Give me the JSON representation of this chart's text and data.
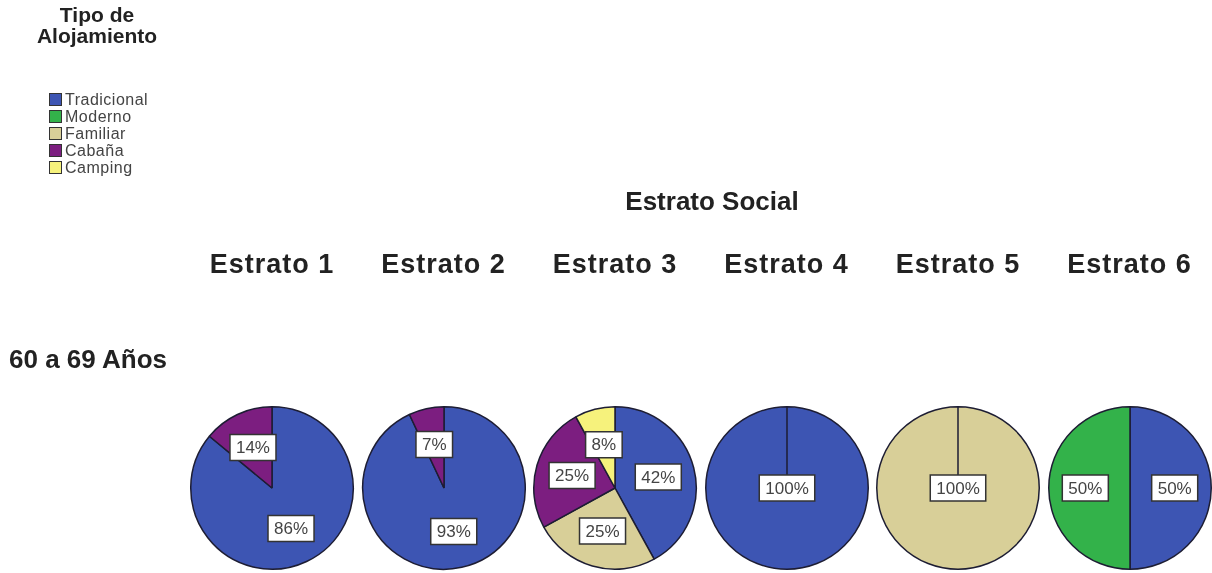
{
  "chart_data": [
    {
      "type": "other",
      "title": "Estrato Social",
      "annotations": [
        "60 a 69 Años"
      ]
    },
    {
      "type": "pie",
      "title": "Estrato 1",
      "categories": [
        "Tradicional",
        "Moderno",
        "Familiar",
        "Cabaña",
        "Camping"
      ],
      "values": [
        86,
        0,
        0,
        14,
        0
      ],
      "colors": [
        "#3d55b3",
        "#33b24a",
        "#d8cf98",
        "#7c1e80",
        "#f6f27c"
      ],
      "value_labels": [
        "86%",
        null,
        null,
        "14%",
        null
      ],
      "legend": "top left",
      "legend_title": "Tipo de Alojamiento"
    },
    {
      "type": "pie",
      "title": "Estrato 2",
      "categories": [
        null,
        null,
        null,
        null,
        null
      ],
      "values": [
        93,
        0,
        0,
        7,
        0
      ],
      "colors": [
        "#3d55b3",
        "#33b24a",
        "#d8cf98",
        "#7c1e80",
        "#f6f27c"
      ],
      "value_labels": [
        "93%",
        null,
        null,
        "7%",
        null
      ]
    },
    {
      "type": "pie",
      "title": "Estrato 3",
      "categories": [
        null,
        null,
        null,
        null,
        null
      ],
      "values": [
        42,
        0,
        25,
        25,
        8
      ],
      "colors": [
        "#3d55b3",
        "#33b24a",
        "#d8cf98",
        "#7c1e80",
        "#f6f27c"
      ],
      "value_labels": [
        "42%",
        null,
        "25%",
        "25%",
        "8%"
      ]
    },
    {
      "type": "pie",
      "title": "Estrato 4",
      "categories": [
        null,
        null,
        null,
        null,
        null
      ],
      "values": [
        100,
        0,
        0,
        0,
        0
      ],
      "colors": [
        "#3d55b3",
        "#33b24a",
        "#d8cf98",
        "#7c1e80",
        "#f6f27c"
      ],
      "value_labels": [
        "100%",
        null,
        null,
        null,
        null
      ]
    },
    {
      "type": "pie",
      "title": "Estrato 5",
      "categories": [
        null,
        null,
        null,
        null,
        null
      ],
      "values": [
        0,
        0,
        100,
        0,
        0
      ],
      "colors": [
        "#3d55b3",
        "#33b24a",
        "#d8cf98",
        "#7c1e80",
        "#f6f27c"
      ],
      "value_labels": [
        null,
        null,
        "100%",
        null,
        null
      ]
    },
    {
      "type": "pie",
      "title": "Estrato 6",
      "categories": [
        null,
        null,
        null,
        null,
        null
      ],
      "values": [
        50,
        50,
        0,
        0,
        0
      ],
      "colors": [
        "#3d55b3",
        "#33b24a",
        "#d8cf98",
        "#7c1e80",
        "#f6f27c"
      ],
      "value_labels": [
        "50%",
        "50%",
        null,
        null,
        null
      ]
    }
  ]
}
